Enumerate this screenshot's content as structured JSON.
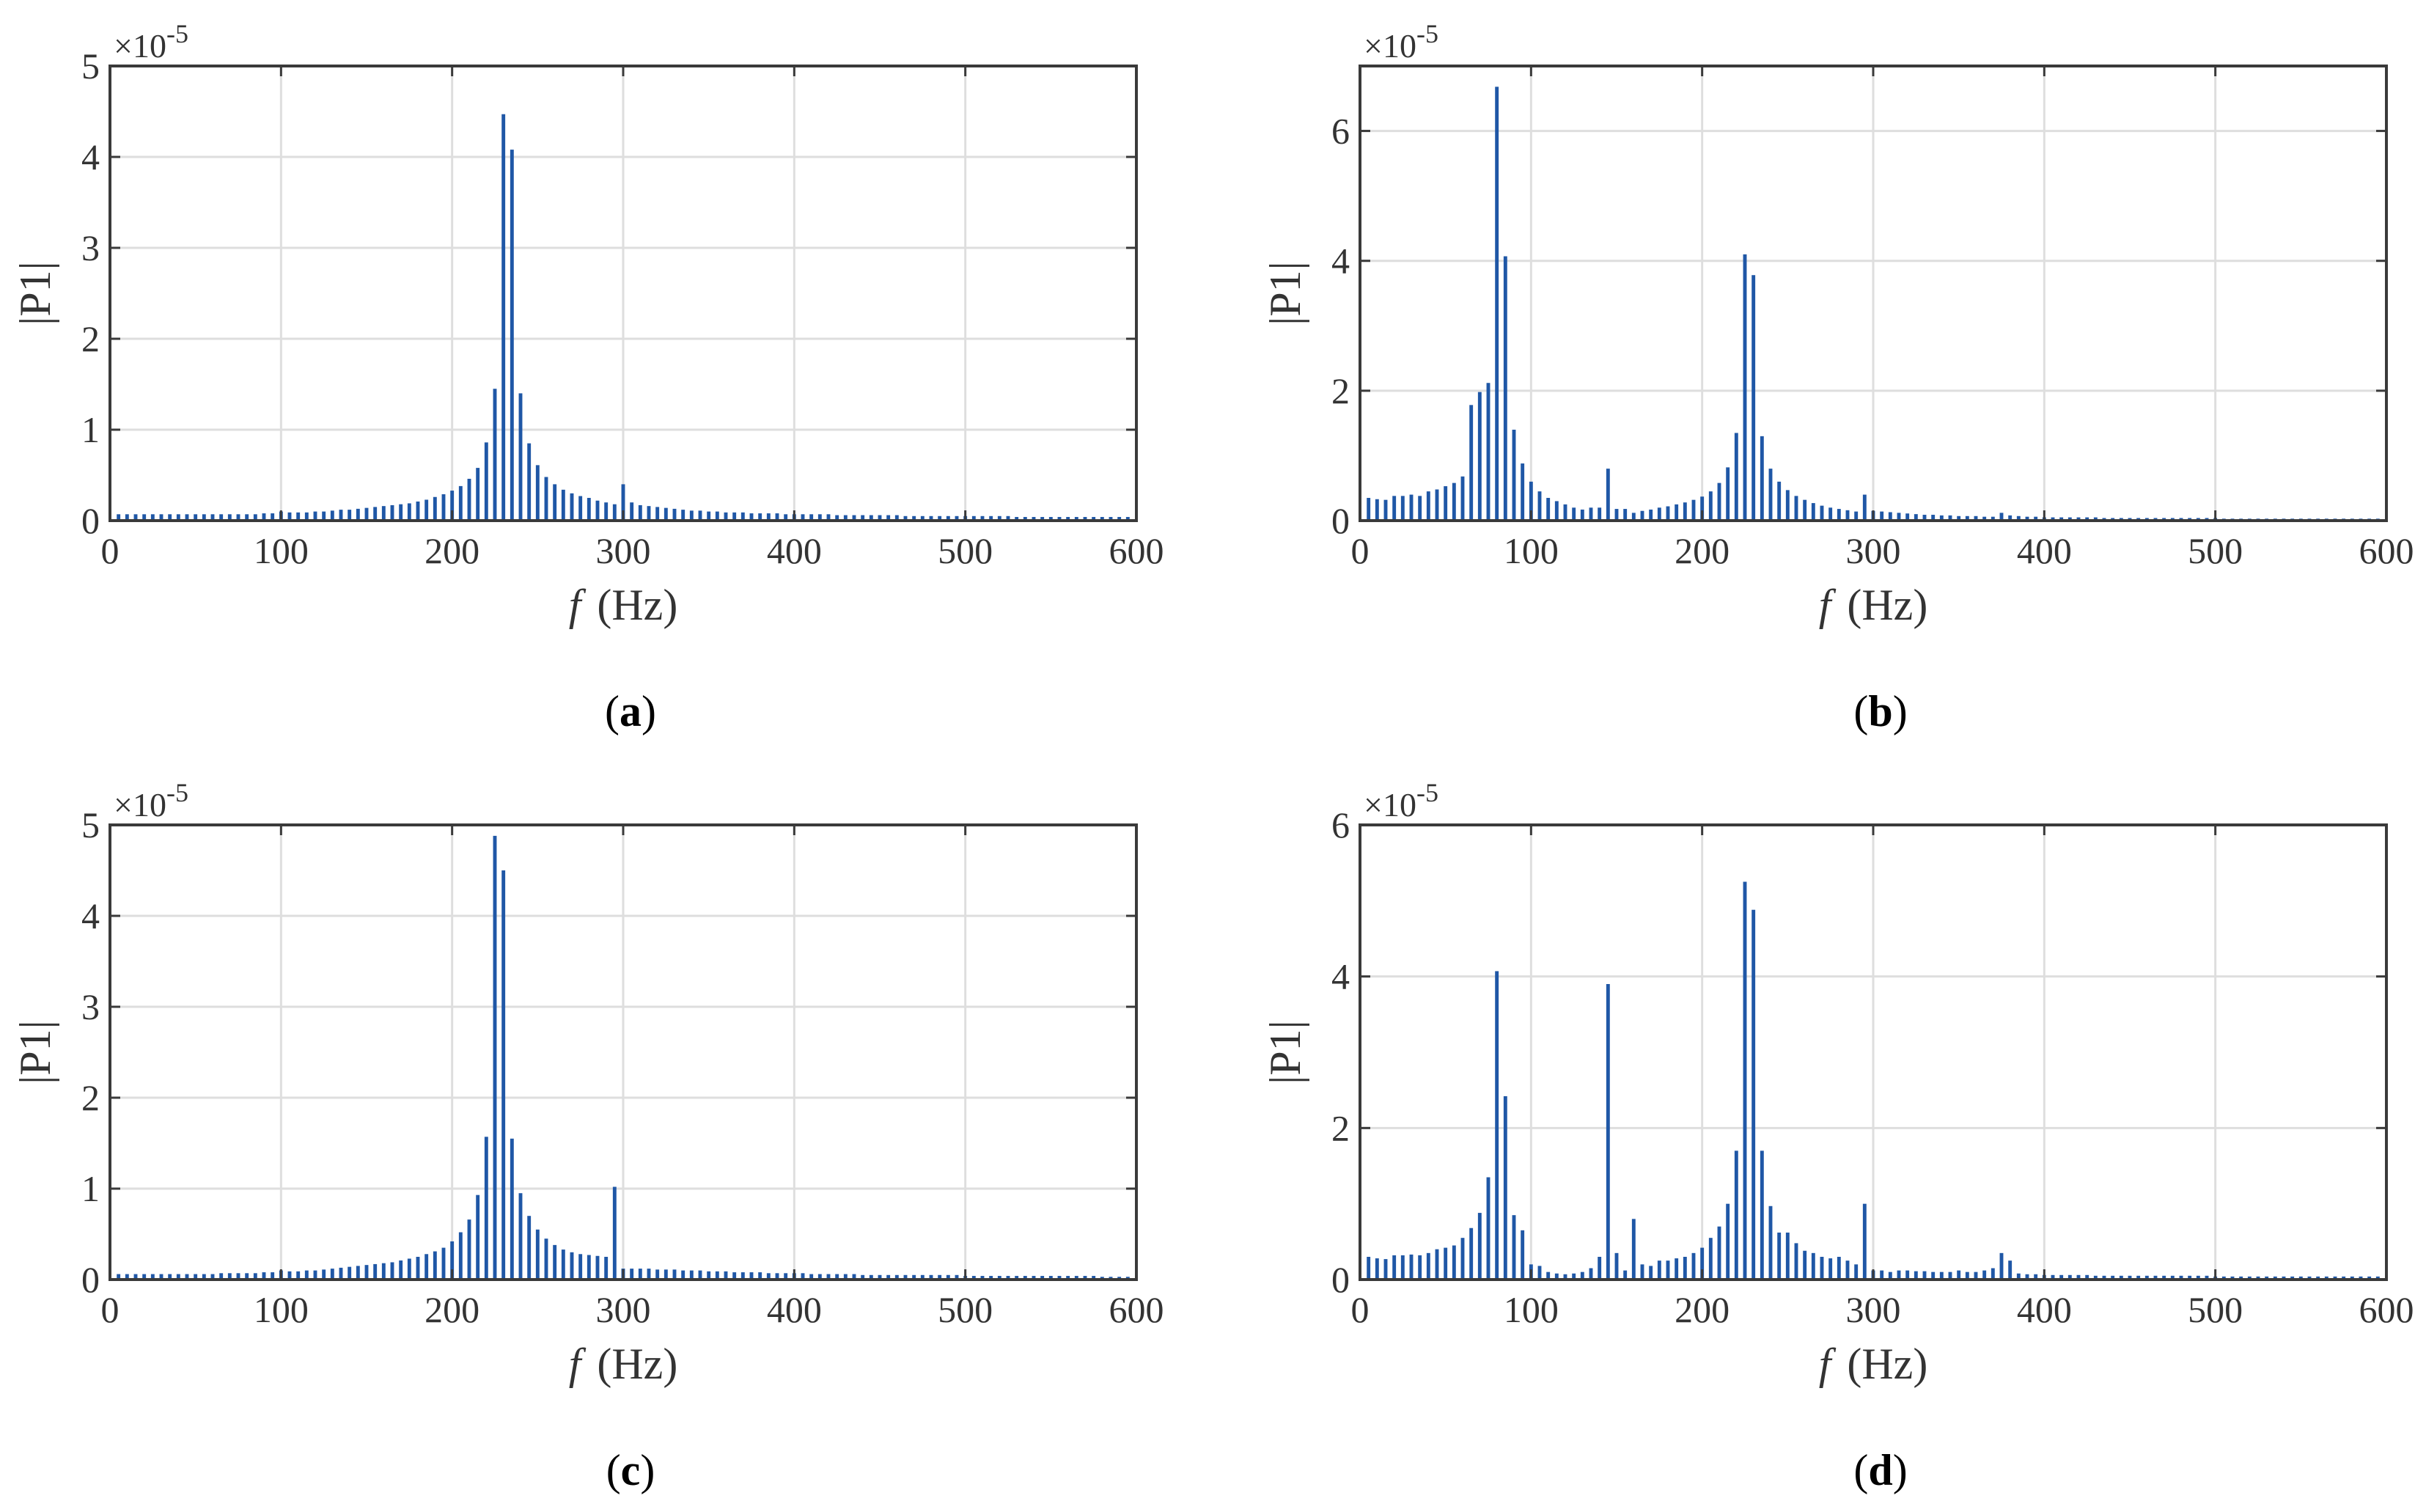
{
  "figure": {
    "bar_color": "#1f57a6",
    "grid_color": "#dedede",
    "axis_color": "#3a3a3a"
  },
  "chart_data": [
    {
      "type": "bar",
      "panel": "a",
      "caption": "(a)",
      "caption_letter": "a",
      "xlabel_var": "f",
      "xlabel_unit": "(Hz)",
      "ylabel": "|P1|",
      "exponent_text": "×10",
      "exponent_power": "-5",
      "xlim": [
        0,
        600
      ],
      "ylim": [
        0,
        5
      ],
      "xticks": [
        0,
        100,
        200,
        300,
        400,
        500,
        600
      ],
      "yticks": [
        0,
        1,
        2,
        3,
        4,
        5
      ],
      "grid": true,
      "series": [
        {
          "name": "|P1|",
          "x": [
            5,
            10,
            15,
            20,
            25,
            30,
            35,
            40,
            45,
            50,
            55,
            60,
            65,
            70,
            75,
            80,
            85,
            90,
            95,
            100,
            105,
            110,
            115,
            120,
            125,
            130,
            135,
            140,
            145,
            150,
            155,
            160,
            165,
            170,
            175,
            180,
            185,
            190,
            195,
            200,
            205,
            210,
            215,
            220,
            225,
            230,
            235,
            240,
            245,
            250,
            255,
            260,
            265,
            270,
            275,
            280,
            285,
            290,
            295,
            300,
            305,
            310,
            315,
            320,
            325,
            330,
            335,
            340,
            345,
            350,
            355,
            360,
            365,
            370,
            375,
            380,
            385,
            390,
            395,
            400,
            405,
            410,
            415,
            420,
            425,
            430,
            435,
            440,
            445,
            450,
            455,
            460,
            465,
            470,
            475,
            480,
            485,
            490,
            495,
            500,
            505,
            510,
            515,
            520,
            525,
            530,
            535,
            540,
            545,
            550,
            555,
            560,
            565,
            570,
            575,
            580,
            585,
            590,
            595
          ],
          "values": [
            0.07,
            0.07,
            0.07,
            0.07,
            0.07,
            0.07,
            0.07,
            0.07,
            0.07,
            0.07,
            0.07,
            0.07,
            0.07,
            0.07,
            0.07,
            0.07,
            0.07,
            0.08,
            0.08,
            0.1,
            0.09,
            0.09,
            0.09,
            0.1,
            0.1,
            0.11,
            0.12,
            0.12,
            0.13,
            0.14,
            0.15,
            0.16,
            0.17,
            0.18,
            0.19,
            0.21,
            0.23,
            0.26,
            0.29,
            0.33,
            0.38,
            0.46,
            0.58,
            0.86,
            1.45,
            4.47,
            4.08,
            1.4,
            0.85,
            0.61,
            0.48,
            0.4,
            0.34,
            0.3,
            0.27,
            0.25,
            0.22,
            0.2,
            0.18,
            0.4,
            0.2,
            0.17,
            0.16,
            0.15,
            0.14,
            0.13,
            0.12,
            0.11,
            0.11,
            0.1,
            0.1,
            0.09,
            0.09,
            0.09,
            0.08,
            0.08,
            0.08,
            0.08,
            0.07,
            0.07,
            0.07,
            0.07,
            0.07,
            0.07,
            0.06,
            0.06,
            0.06,
            0.06,
            0.06,
            0.06,
            0.06,
            0.06,
            0.05,
            0.05,
            0.05,
            0.05,
            0.05,
            0.05,
            0.05,
            0.05,
            0.05,
            0.05,
            0.05,
            0.05,
            0.05,
            0.04,
            0.04,
            0.04,
            0.04,
            0.04,
            0.04,
            0.04,
            0.04,
            0.04,
            0.04,
            0.04,
            0.04,
            0.04,
            0.04
          ]
        }
      ]
    },
    {
      "type": "bar",
      "panel": "b",
      "caption": "(b)",
      "caption_letter": "b",
      "xlabel_var": "f",
      "xlabel_unit": "(Hz)",
      "ylabel": "|P1|",
      "exponent_text": "×10",
      "exponent_power": "-5",
      "xlim": [
        0,
        600
      ],
      "ylim": [
        0,
        7
      ],
      "xticks": [
        0,
        100,
        200,
        300,
        400,
        500,
        600
      ],
      "yticks": [
        0,
        2,
        4,
        6
      ],
      "grid": true,
      "series": [
        {
          "name": "|P1|",
          "x": [
            5,
            10,
            15,
            20,
            25,
            30,
            35,
            40,
            45,
            50,
            55,
            60,
            65,
            70,
            75,
            80,
            85,
            90,
            95,
            100,
            105,
            110,
            115,
            120,
            125,
            130,
            135,
            140,
            145,
            150,
            155,
            160,
            165,
            170,
            175,
            180,
            185,
            190,
            195,
            200,
            205,
            210,
            215,
            220,
            225,
            230,
            235,
            240,
            245,
            250,
            255,
            260,
            265,
            270,
            275,
            280,
            285,
            290,
            295,
            300,
            305,
            310,
            315,
            320,
            325,
            330,
            335,
            340,
            345,
            350,
            355,
            360,
            365,
            370,
            375,
            380,
            385,
            390,
            395,
            400,
            405,
            410,
            415,
            420,
            425,
            430,
            435,
            440,
            445,
            450,
            455,
            460,
            465,
            470,
            475,
            480,
            485,
            490,
            495,
            500,
            505,
            510,
            515,
            520,
            525,
            530,
            535,
            540,
            545,
            550,
            555,
            560,
            565,
            570,
            575,
            580,
            585,
            590,
            595
          ],
          "values": [
            0.35,
            0.33,
            0.32,
            0.38,
            0.38,
            0.4,
            0.38,
            0.45,
            0.48,
            0.53,
            0.58,
            0.68,
            1.78,
            1.98,
            2.12,
            6.68,
            4.07,
            1.4,
            0.88,
            0.6,
            0.45,
            0.35,
            0.3,
            0.25,
            0.2,
            0.17,
            0.2,
            0.2,
            0.8,
            0.18,
            0.18,
            0.12,
            0.15,
            0.17,
            0.2,
            0.22,
            0.25,
            0.28,
            0.32,
            0.37,
            0.45,
            0.58,
            0.82,
            1.35,
            4.1,
            3.78,
            1.3,
            0.8,
            0.6,
            0.47,
            0.38,
            0.32,
            0.27,
            0.23,
            0.2,
            0.18,
            0.16,
            0.14,
            0.4,
            0.15,
            0.14,
            0.13,
            0.12,
            0.11,
            0.1,
            0.09,
            0.09,
            0.08,
            0.08,
            0.07,
            0.07,
            0.07,
            0.06,
            0.06,
            0.12,
            0.08,
            0.07,
            0.06,
            0.06,
            0.05,
            0.05,
            0.05,
            0.05,
            0.05,
            0.05,
            0.05,
            0.04,
            0.04,
            0.04,
            0.04,
            0.04,
            0.04,
            0.04,
            0.04,
            0.04,
            0.04,
            0.04,
            0.04,
            0.04,
            0.04,
            0.03,
            0.03,
            0.03,
            0.03,
            0.03,
            0.03,
            0.03,
            0.03,
            0.03,
            0.03,
            0.03,
            0.03,
            0.03,
            0.03,
            0.03,
            0.03,
            0.03,
            0.03,
            0.03
          ]
        }
      ]
    },
    {
      "type": "bar",
      "panel": "c",
      "caption": "(c)",
      "caption_letter": "c",
      "xlabel_var": "f",
      "xlabel_unit": "(Hz)",
      "ylabel": "|P1|",
      "exponent_text": "×10",
      "exponent_power": "-5",
      "xlim": [
        0,
        600
      ],
      "ylim": [
        0,
        5
      ],
      "xticks": [
        0,
        100,
        200,
        300,
        400,
        500,
        600
      ],
      "yticks": [
        0,
        1,
        2,
        3,
        4,
        5
      ],
      "grid": true,
      "series": [
        {
          "name": "|P1|",
          "x": [
            5,
            10,
            15,
            20,
            25,
            30,
            35,
            40,
            45,
            50,
            55,
            60,
            65,
            70,
            75,
            80,
            85,
            90,
            95,
            100,
            105,
            110,
            115,
            120,
            125,
            130,
            135,
            140,
            145,
            150,
            155,
            160,
            165,
            170,
            175,
            180,
            185,
            190,
            195,
            200,
            205,
            210,
            215,
            220,
            225,
            230,
            235,
            240,
            245,
            250,
            255,
            260,
            265,
            270,
            275,
            280,
            285,
            290,
            295,
            300,
            305,
            310,
            315,
            320,
            325,
            330,
            335,
            340,
            345,
            350,
            355,
            360,
            365,
            370,
            375,
            380,
            385,
            390,
            395,
            400,
            405,
            410,
            415,
            420,
            425,
            430,
            435,
            440,
            445,
            450,
            455,
            460,
            465,
            470,
            475,
            480,
            485,
            490,
            495,
            500,
            505,
            510,
            515,
            520,
            525,
            530,
            535,
            540,
            545,
            550,
            555,
            560,
            565,
            570,
            575,
            580,
            585,
            590,
            595
          ],
          "values": [
            0.06,
            0.06,
            0.06,
            0.06,
            0.06,
            0.06,
            0.06,
            0.06,
            0.06,
            0.06,
            0.06,
            0.06,
            0.07,
            0.07,
            0.07,
            0.07,
            0.07,
            0.08,
            0.08,
            0.1,
            0.09,
            0.09,
            0.1,
            0.1,
            0.11,
            0.12,
            0.13,
            0.14,
            0.15,
            0.16,
            0.17,
            0.18,
            0.19,
            0.21,
            0.23,
            0.25,
            0.28,
            0.31,
            0.35,
            0.42,
            0.52,
            0.66,
            0.93,
            1.57,
            4.88,
            4.5,
            1.55,
            0.95,
            0.7,
            0.55,
            0.45,
            0.38,
            0.33,
            0.3,
            0.28,
            0.27,
            0.26,
            0.25,
            1.02,
            0.12,
            0.12,
            0.12,
            0.12,
            0.11,
            0.11,
            0.11,
            0.1,
            0.1,
            0.1,
            0.09,
            0.09,
            0.09,
            0.08,
            0.08,
            0.08,
            0.08,
            0.07,
            0.07,
            0.07,
            0.07,
            0.07,
            0.06,
            0.06,
            0.06,
            0.06,
            0.06,
            0.06,
            0.05,
            0.05,
            0.05,
            0.05,
            0.05,
            0.05,
            0.05,
            0.05,
            0.05,
            0.05,
            0.05,
            0.05,
            0.04,
            0.04,
            0.04,
            0.04,
            0.04,
            0.04,
            0.04,
            0.04,
            0.04,
            0.04,
            0.04,
            0.04,
            0.04,
            0.04,
            0.04,
            0.04,
            0.03,
            0.03,
            0.03,
            0.03
          ]
        }
      ]
    },
    {
      "type": "bar",
      "panel": "d",
      "caption": "(d)",
      "caption_letter": "d",
      "xlabel_var": "f",
      "xlabel_unit": "(Hz)",
      "ylabel": "|P1|",
      "exponent_text": "×10",
      "exponent_power": "-5",
      "xlim": [
        0,
        600
      ],
      "ylim": [
        0,
        6
      ],
      "xticks": [
        0,
        100,
        200,
        300,
        400,
        500,
        600
      ],
      "yticks": [
        0,
        2,
        4,
        6
      ],
      "grid": true,
      "series": [
        {
          "name": "|P1|",
          "x": [
            5,
            10,
            15,
            20,
            25,
            30,
            35,
            40,
            45,
            50,
            55,
            60,
            65,
            70,
            75,
            80,
            85,
            90,
            95,
            100,
            105,
            110,
            115,
            120,
            125,
            130,
            135,
            140,
            145,
            150,
            155,
            160,
            165,
            170,
            175,
            180,
            185,
            190,
            195,
            200,
            205,
            210,
            215,
            220,
            225,
            230,
            235,
            240,
            245,
            250,
            255,
            260,
            265,
            270,
            275,
            280,
            285,
            290,
            295,
            300,
            305,
            310,
            315,
            320,
            325,
            330,
            335,
            340,
            345,
            350,
            355,
            360,
            365,
            370,
            375,
            380,
            385,
            390,
            395,
            400,
            405,
            410,
            415,
            420,
            425,
            430,
            435,
            440,
            445,
            450,
            455,
            460,
            465,
            470,
            475,
            480,
            485,
            490,
            495,
            500,
            505,
            510,
            515,
            520,
            525,
            530,
            535,
            540,
            545,
            550,
            555,
            560,
            565,
            570,
            575,
            580,
            585,
            590,
            595
          ],
          "values": [
            0.3,
            0.28,
            0.27,
            0.32,
            0.32,
            0.33,
            0.32,
            0.35,
            0.4,
            0.42,
            0.45,
            0.55,
            0.68,
            0.88,
            1.35,
            4.07,
            2.42,
            0.85,
            0.65,
            0.2,
            0.18,
            0.1,
            0.08,
            0.07,
            0.08,
            0.1,
            0.15,
            0.3,
            3.9,
            0.35,
            0.12,
            0.8,
            0.2,
            0.18,
            0.25,
            0.25,
            0.28,
            0.3,
            0.35,
            0.42,
            0.55,
            0.7,
            1.0,
            1.7,
            5.25,
            4.88,
            1.7,
            0.97,
            0.62,
            0.62,
            0.48,
            0.38,
            0.35,
            0.3,
            0.28,
            0.3,
            0.25,
            0.2,
            1.0,
            0.12,
            0.12,
            0.1,
            0.12,
            0.12,
            0.11,
            0.11,
            0.1,
            0.1,
            0.1,
            0.12,
            0.1,
            0.1,
            0.12,
            0.15,
            0.35,
            0.25,
            0.08,
            0.07,
            0.07,
            0.06,
            0.06,
            0.06,
            0.06,
            0.06,
            0.06,
            0.05,
            0.05,
            0.05,
            0.05,
            0.05,
            0.05,
            0.05,
            0.05,
            0.05,
            0.05,
            0.05,
            0.05,
            0.05,
            0.05,
            0.04,
            0.04,
            0.04,
            0.04,
            0.04,
            0.04,
            0.04,
            0.04,
            0.04,
            0.04,
            0.04,
            0.04,
            0.04,
            0.04,
            0.04,
            0.04,
            0.04,
            0.04,
            0.04,
            0.04
          ]
        }
      ]
    }
  ]
}
